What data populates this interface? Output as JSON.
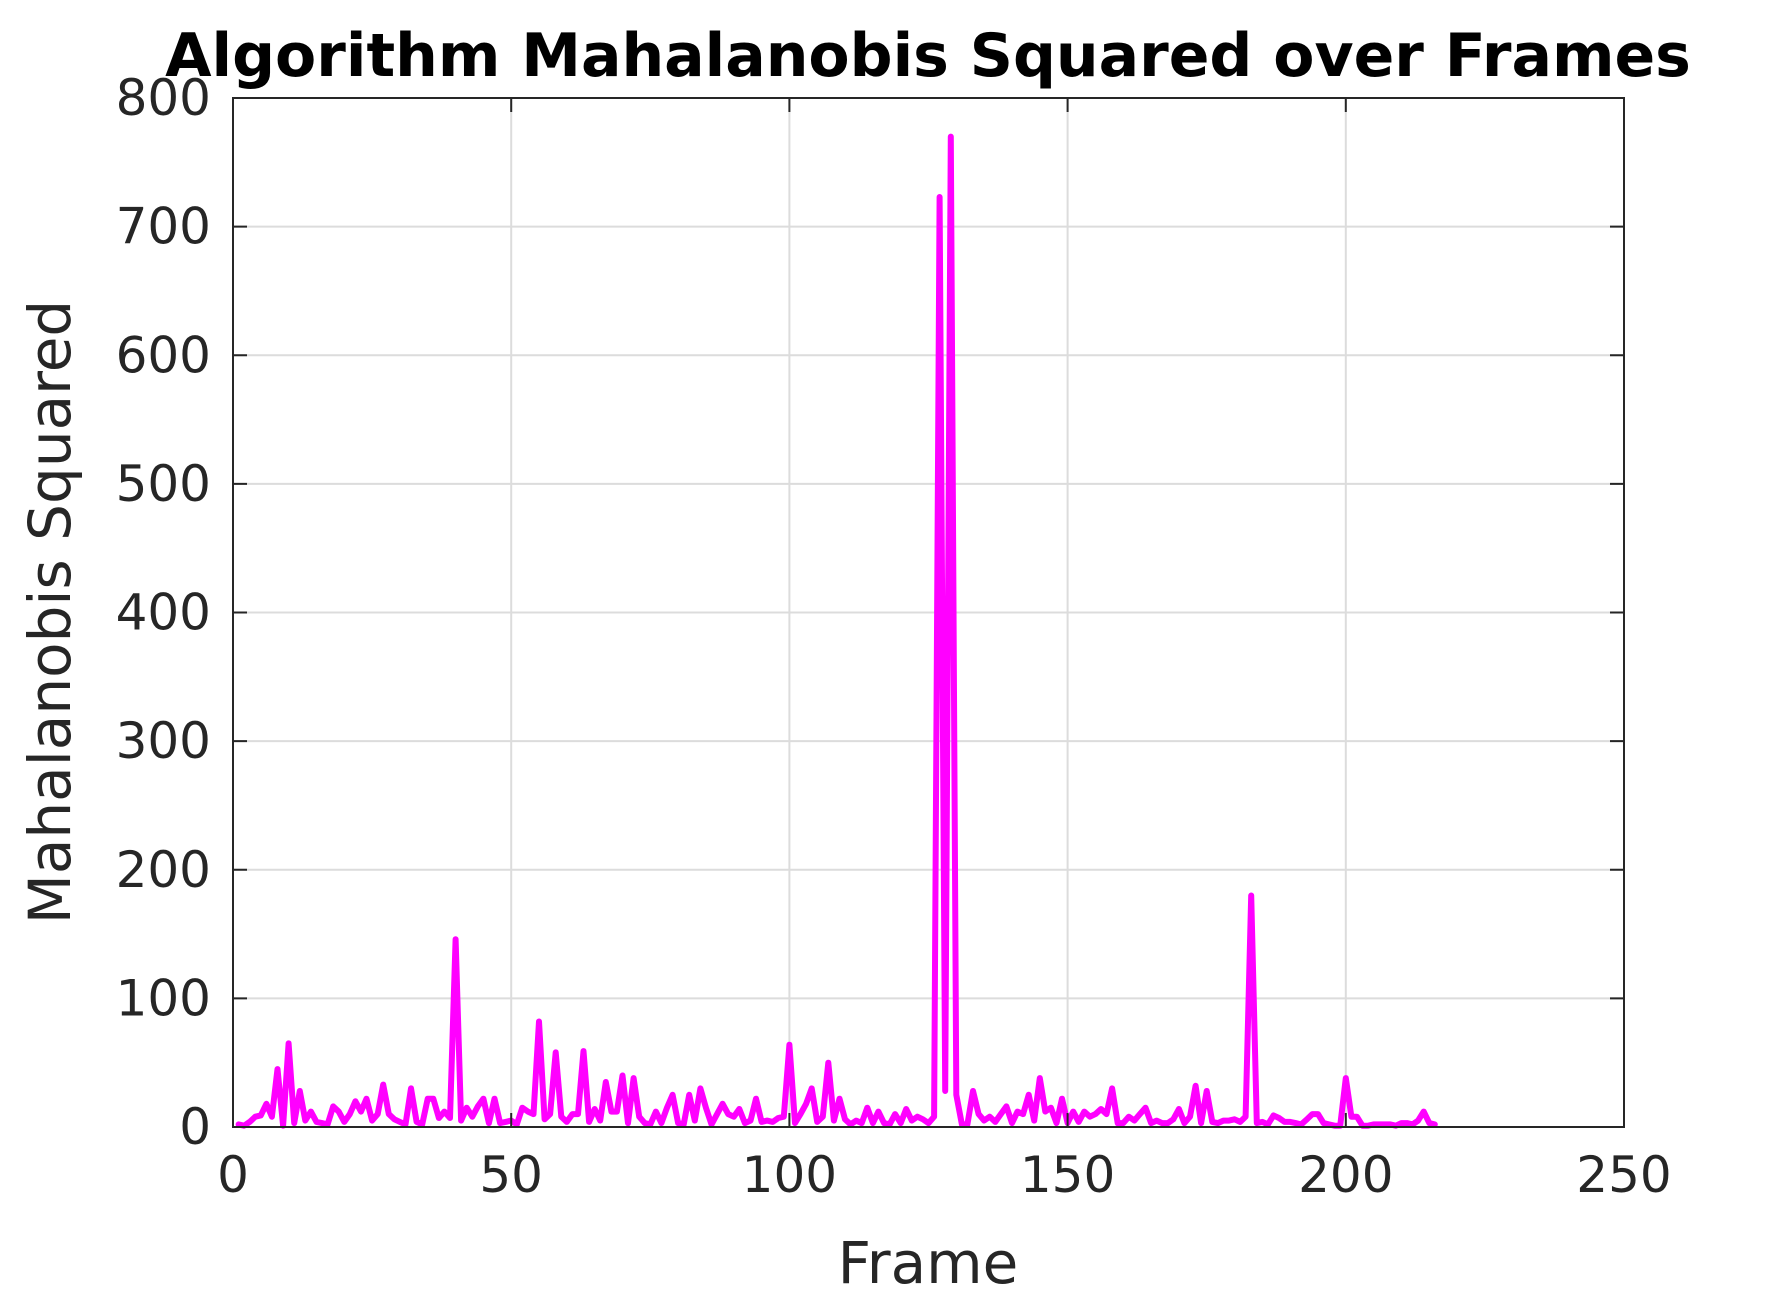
{
  "chart_data": {
    "type": "line",
    "title": "Algorithm Mahalanobis Squared over Frames",
    "xlabel": "Frame",
    "ylabel": "Mahalanobis Squared",
    "xlim": [
      0,
      250
    ],
    "ylim": [
      0,
      800
    ],
    "xticks": [
      0,
      50,
      100,
      150,
      200,
      250
    ],
    "yticks": [
      0,
      100,
      200,
      300,
      400,
      500,
      600,
      700,
      800
    ],
    "xtick_labels": [
      "0",
      "50",
      "100",
      "150",
      "200",
      "250"
    ],
    "ytick_labels": [
      "0",
      "100",
      "200",
      "300",
      "400",
      "500",
      "600",
      "700",
      "800"
    ],
    "grid": true,
    "line_color": "#ff00ff",
    "series": [
      {
        "x": [
          1,
          2,
          3,
          4,
          5,
          6,
          7,
          8,
          9,
          10,
          11,
          12,
          13,
          14,
          15,
          16,
          17,
          18,
          19,
          20,
          21,
          22,
          23,
          24,
          25,
          26,
          27,
          28,
          29,
          30,
          31,
          32,
          33,
          34,
          35,
          36,
          37,
          38,
          39,
          40,
          41,
          42,
          43,
          44,
          45,
          46,
          47,
          48,
          49,
          50,
          51,
          52,
          53,
          54,
          55,
          56,
          57,
          58,
          59,
          60,
          61,
          62,
          63,
          64,
          65,
          66,
          67,
          68,
          69,
          70,
          71,
          72,
          73,
          74,
          75,
          76,
          77,
          78,
          79,
          80,
          81,
          82,
          83,
          84,
          85,
          86,
          87,
          88,
          89,
          90,
          91,
          92,
          93,
          94,
          95,
          96,
          97,
          98,
          99,
          100,
          101,
          102,
          103,
          104,
          105,
          106,
          107,
          108,
          109,
          110,
          111,
          112,
          113,
          114,
          115,
          116,
          117,
          118,
          119,
          120,
          121,
          122,
          123,
          124,
          125,
          126,
          127,
          128,
          129,
          130,
          131,
          132,
          133,
          134,
          135,
          136,
          137,
          138,
          139,
          140,
          141,
          142,
          143,
          144,
          145,
          146,
          147,
          148,
          149,
          150,
          151,
          152,
          153,
          154,
          155,
          156,
          157,
          158,
          159,
          160,
          161,
          162,
          163,
          164,
          165,
          166,
          167,
          168,
          169,
          170,
          171,
          172,
          173,
          174,
          175,
          176,
          177,
          178,
          179,
          180,
          181,
          182,
          183,
          184,
          185,
          186,
          187,
          188,
          189,
          190,
          191,
          192,
          193,
          194,
          195,
          196,
          197,
          198,
          199,
          200,
          201,
          202,
          203,
          204,
          205,
          206,
          207,
          208,
          209,
          210,
          211,
          212,
          213,
          214,
          215,
          216
        ],
        "values": [
          2,
          1,
          4,
          8,
          9,
          18,
          8,
          45,
          1,
          65,
          3,
          28,
          5,
          12,
          4,
          3,
          2,
          16,
          12,
          4,
          10,
          20,
          12,
          22,
          5,
          10,
          33,
          10,
          6,
          4,
          2,
          30,
          4,
          2,
          22,
          22,
          7,
          12,
          7,
          146,
          5,
          15,
          8,
          16,
          22,
          3,
          22,
          3,
          4,
          5,
          2,
          15,
          12,
          10,
          82,
          6,
          10,
          58,
          8,
          4,
          10,
          10,
          59,
          4,
          14,
          5,
          35,
          12,
          12,
          40,
          3,
          38,
          8,
          3,
          2,
          12,
          3,
          15,
          25,
          3,
          2,
          25,
          5,
          30,
          15,
          2,
          10,
          18,
          10,
          8,
          14,
          3,
          5,
          22,
          4,
          5,
          4,
          7,
          8,
          64,
          3,
          10,
          18,
          30,
          4,
          8,
          50,
          5,
          22,
          6,
          2,
          5,
          3,
          15,
          3,
          12,
          3,
          2,
          10,
          3,
          14,
          5,
          8,
          6,
          3,
          8,
          723,
          28,
          770,
          25,
          2,
          2,
          28,
          10,
          5,
          8,
          4,
          10,
          16,
          3,
          12,
          10,
          25,
          5,
          38,
          12,
          15,
          3,
          22,
          3,
          12,
          4,
          12,
          8,
          10,
          14,
          10,
          30,
          3,
          3,
          8,
          5,
          10,
          15,
          3,
          5,
          3,
          3,
          6,
          14,
          3,
          8,
          32,
          3,
          28,
          4,
          3,
          5,
          5,
          6,
          4,
          8,
          180,
          3,
          4,
          2,
          9,
          7,
          4,
          4,
          3,
          2,
          6,
          10,
          10,
          3,
          2,
          1,
          1,
          38,
          8,
          8,
          1,
          1,
          2,
          2,
          2,
          2,
          1,
          3,
          3,
          2,
          5,
          12,
          3,
          2
        ]
      }
    ]
  }
}
